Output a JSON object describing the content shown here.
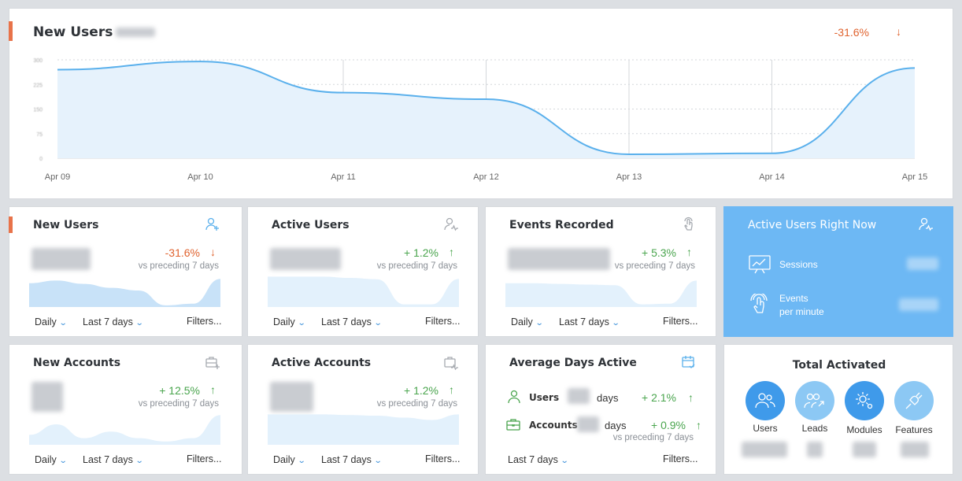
{
  "main_chart": {
    "title": "New Users",
    "pct": "-31.6%",
    "arrow": "↓"
  },
  "chart_data": {
    "type": "area",
    "title": "New Users",
    "categories": [
      "Apr 09",
      "Apr 10",
      "Apr 11",
      "Apr 12",
      "Apr 13",
      "Apr 14",
      "Apr 15"
    ],
    "values": [
      270,
      295,
      200,
      180,
      12,
      15,
      275
    ],
    "ylim": [
      0,
      300
    ],
    "grid": true,
    "color": "#5ab0ec"
  },
  "cards": {
    "new_users": {
      "title": "New Users",
      "pct": "-31.6%",
      "arrow": "↓",
      "vs": "vs preceding 7 days",
      "period": "Daily",
      "range": "Last 7 days",
      "filters": "Filters...",
      "trend": [
        0.72,
        0.8,
        0.7,
        0.58,
        0.5,
        0.05,
        0.1,
        0.85
      ]
    },
    "active_users": {
      "title": "Active Users",
      "pct": "+ 1.2%",
      "arrow": "↑",
      "vs": "vs preceding 7 days",
      "period": "Daily",
      "range": "Last 7 days",
      "filters": "Filters...",
      "trend": [
        0.92,
        0.92,
        0.92,
        0.88,
        0.84,
        0.08,
        0.08,
        0.85
      ]
    },
    "events_recorded": {
      "title": "Events Recorded",
      "pct": "+ 5.3%",
      "arrow": "↑",
      "vs": "vs preceding 7 days",
      "period": "Daily",
      "range": "Last 7 days",
      "filters": "Filters...",
      "trend": [
        0.72,
        0.72,
        0.7,
        0.68,
        0.66,
        0.08,
        0.1,
        0.8
      ]
    },
    "new_accounts": {
      "title": "New Accounts",
      "pct": "+ 12.5%",
      "arrow": "↑",
      "vs": "vs preceding 7 days",
      "period": "Daily",
      "range": "Last 7 days",
      "filters": "Filters...",
      "trend": [
        0.3,
        0.62,
        0.2,
        0.4,
        0.2,
        0.1,
        0.2,
        0.9
      ]
    },
    "active_accounts": {
      "title": "Active Accounts",
      "pct": "+ 1.2%",
      "arrow": "↑",
      "vs": "vs preceding 7 days",
      "period": "Daily",
      "range": "Last 7 days",
      "filters": "Filters...",
      "trend": [
        0.92,
        0.92,
        0.92,
        0.9,
        0.88,
        0.82,
        0.75,
        0.92
      ]
    },
    "avg_days_active": {
      "title": "Average Days Active",
      "users_label": "Users",
      "users_unit": "days",
      "users_pct": "+ 2.1%",
      "users_arrow": "↑",
      "accounts_label": "Accounts",
      "accounts_unit": "days",
      "accounts_pct": "+ 0.9%",
      "accounts_arrow": "↑",
      "vs": "vs preceding 7 days",
      "range": "Last 7 days",
      "filters": "Filters..."
    },
    "active_now": {
      "title": "Active Users Right Now",
      "sessions": "Sessions",
      "events_line1": "Events",
      "events_line2": "per minute"
    },
    "total_activated": {
      "title": "Total Activated",
      "items": [
        "Users",
        "Leads",
        "Modules",
        "Features"
      ]
    }
  }
}
